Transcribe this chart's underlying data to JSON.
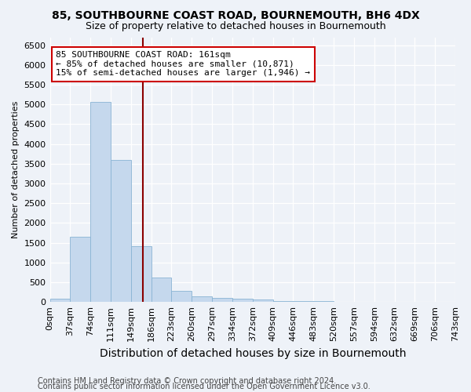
{
  "title1": "85, SOUTHBOURNE COAST ROAD, BOURNEMOUTH, BH6 4DX",
  "title2": "Size of property relative to detached houses in Bournemouth",
  "xlabel": "Distribution of detached houses by size in Bournemouth",
  "ylabel": "Number of detached properties",
  "bar_values": [
    75,
    1650,
    5060,
    3600,
    1410,
    620,
    290,
    140,
    100,
    80,
    55,
    30,
    20,
    15,
    10,
    8,
    5,
    4,
    3,
    2
  ],
  "bar_labels": [
    "0sqm",
    "37sqm",
    "74sqm",
    "111sqm",
    "149sqm",
    "186sqm",
    "223sqm",
    "260sqm",
    "297sqm",
    "334sqm",
    "372sqm",
    "409sqm",
    "446sqm",
    "483sqm",
    "520sqm",
    "557sqm",
    "594sqm",
    "632sqm",
    "669sqm",
    "706sqm",
    "743sqm"
  ],
  "bar_color": "#c5d8ed",
  "bar_edge_color": "#8ab4d4",
  "vline_x": 4.6,
  "vline_color": "#8b0000",
  "annotation_text": "85 SOUTHBOURNE COAST ROAD: 161sqm\n← 85% of detached houses are smaller (10,871)\n15% of semi-detached houses are larger (1,946) →",
  "annotation_box_color": "white",
  "annotation_box_edge_color": "#cc0000",
  "ylim": [
    0,
    6700
  ],
  "yticks": [
    0,
    500,
    1000,
    1500,
    2000,
    2500,
    3000,
    3500,
    4000,
    4500,
    5000,
    5500,
    6000,
    6500
  ],
  "footer1": "Contains HM Land Registry data © Crown copyright and database right 2024.",
  "footer2": "Contains public sector information licensed under the Open Government Licence v3.0.",
  "bg_color": "#eef2f8",
  "plot_bg_color": "#eef2f8",
  "title1_fontsize": 10,
  "title2_fontsize": 9,
  "xlabel_fontsize": 10,
  "ylabel_fontsize": 8,
  "tick_fontsize": 8,
  "annotation_fontsize": 8,
  "footer_fontsize": 7
}
